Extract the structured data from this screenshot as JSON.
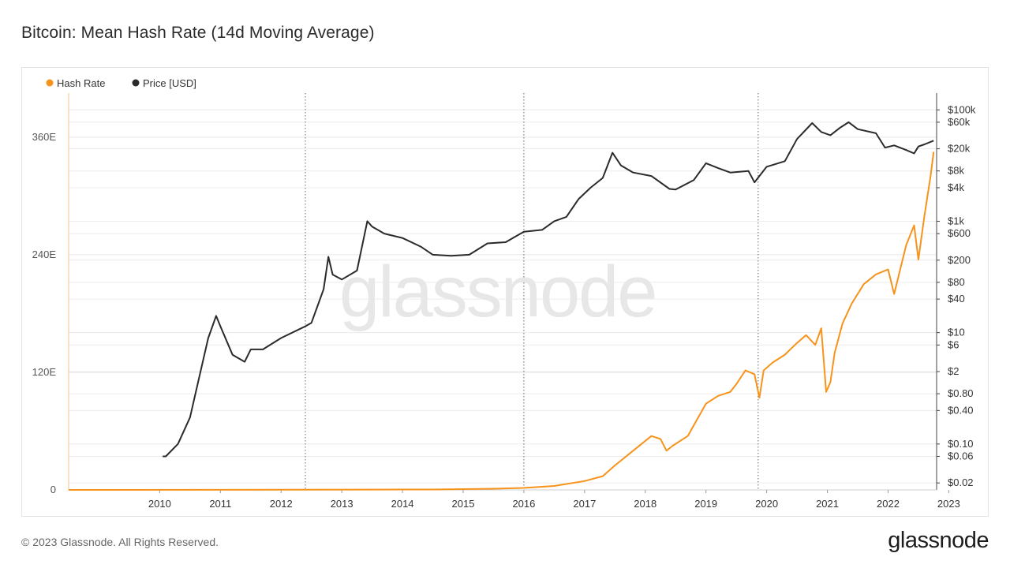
{
  "page": {
    "title": "Bitcoin: Mean Hash Rate (14d Moving Average)",
    "footer": "© 2023 Glassnode. All Rights Reserved.",
    "brand": "glassnode",
    "watermark": "glassnode"
  },
  "chart_data": {
    "type": "line",
    "title": "Bitcoin: Mean Hash Rate (14d Moving Average)",
    "legend_position": "top-left",
    "colors": {
      "hash_rate": "#f7931a",
      "price": "#2b2b2b",
      "grid": "#ececec",
      "axis_text": "#555555"
    },
    "x_axis": {
      "range": [
        2009.0,
        2023.3
      ],
      "ticks": [
        2010,
        2011,
        2012,
        2013,
        2014,
        2015,
        2016,
        2017,
        2018,
        2019,
        2020,
        2021,
        2022,
        2023
      ],
      "tick_labels": [
        "2010",
        "2011",
        "2012",
        "2013",
        "2014",
        "2015",
        "2016",
        "2017",
        "2018",
        "2019",
        "2020",
        "2021",
        "2022",
        "2023"
      ],
      "halving_markers": [
        2012.9,
        2016.5,
        2020.36
      ]
    },
    "y_left": {
      "label": "Hash Rate",
      "range": [
        0,
        405
      ],
      "ticks": [
        0,
        120,
        240,
        360
      ],
      "tick_labels": [
        "0",
        "120E",
        "240E",
        "360E"
      ]
    },
    "y_right": {
      "label": "Price [USD]",
      "scale": "log",
      "range": [
        0.015,
        200000
      ],
      "ticks": [
        0.02,
        0.06,
        0.1,
        0.4,
        0.8,
        2,
        6,
        10,
        40,
        80,
        200,
        600,
        1000,
        4000,
        8000,
        20000,
        60000,
        100000
      ],
      "tick_labels": [
        "$0.02",
        "$0.06",
        "$0.10",
        "$0.40",
        "$0.80",
        "$2",
        "$6",
        "$10",
        "$40",
        "$80",
        "$200",
        "$600",
        "$1k",
        "$4k",
        "$8k",
        "$20k",
        "$60k",
        "$100k"
      ]
    },
    "legend": [
      "Hash Rate",
      "Price [USD]"
    ],
    "series": [
      {
        "name": "Hash Rate",
        "axis": "left",
        "x": [
          2009.0,
          2014.0,
          2015.0,
          2016.0,
          2016.5,
          2017.0,
          2017.5,
          2017.8,
          2018.0,
          2018.3,
          2018.6,
          2018.75,
          2018.85,
          2018.95,
          2019.2,
          2019.5,
          2019.7,
          2019.9,
          2020.0,
          2020.15,
          2020.3,
          2020.38,
          2020.45,
          2020.6,
          2020.8,
          2021.0,
          2021.15,
          2021.3,
          2021.4,
          2021.48,
          2021.55,
          2021.62,
          2021.75,
          2021.9,
          2022.1,
          2022.3,
          2022.5,
          2022.6,
          2022.8,
          2022.93,
          2023.0,
          2023.1,
          2023.2,
          2023.25
        ],
        "values": [
          0,
          0.3,
          0.4,
          1.2,
          2,
          4,
          9,
          14,
          25,
          40,
          55,
          52,
          40,
          45,
          55,
          88,
          96,
          100,
          108,
          122,
          118,
          94,
          122,
          130,
          138,
          150,
          158,
          148,
          165,
          100,
          110,
          140,
          170,
          190,
          210,
          220,
          225,
          200,
          250,
          270,
          235,
          280,
          320,
          345
        ]
      },
      {
        "name": "Price [USD]",
        "axis": "right",
        "x": [
          2010.55,
          2010.6,
          2010.8,
          2011.0,
          2011.1,
          2011.3,
          2011.43,
          2011.5,
          2011.7,
          2011.9,
          2012.0,
          2012.2,
          2012.5,
          2012.9,
          2013.0,
          2013.2,
          2013.28,
          2013.35,
          2013.5,
          2013.75,
          2013.92,
          2014.0,
          2014.2,
          2014.5,
          2014.8,
          2015.0,
          2015.3,
          2015.6,
          2015.9,
          2016.2,
          2016.5,
          2016.8,
          2017.0,
          2017.2,
          2017.4,
          2017.6,
          2017.8,
          2017.96,
          2018.1,
          2018.3,
          2018.6,
          2018.9,
          2019.0,
          2019.3,
          2019.5,
          2019.7,
          2019.9,
          2020.2,
          2020.3,
          2020.5,
          2020.8,
          2021.0,
          2021.25,
          2021.4,
          2021.55,
          2021.7,
          2021.85,
          2022.0,
          2022.3,
          2022.45,
          2022.6,
          2022.8,
          2022.93,
          2023.0,
          2023.1,
          2023.25
        ],
        "values": [
          0.06,
          0.06,
          0.1,
          0.3,
          0.9,
          8,
          20,
          13,
          4,
          3,
          5,
          5,
          8,
          13,
          15,
          60,
          230,
          110,
          90,
          130,
          1000,
          800,
          600,
          500,
          350,
          250,
          240,
          250,
          400,
          420,
          650,
          700,
          1000,
          1200,
          2500,
          4000,
          6000,
          17000,
          10000,
          7500,
          6500,
          3800,
          3700,
          5500,
          11000,
          9000,
          7500,
          8000,
          5000,
          9500,
          12000,
          30000,
          58000,
          40000,
          35000,
          47000,
          60000,
          45000,
          38000,
          21000,
          23000,
          19000,
          16500,
          22000,
          24000,
          28000
        ]
      }
    ]
  }
}
